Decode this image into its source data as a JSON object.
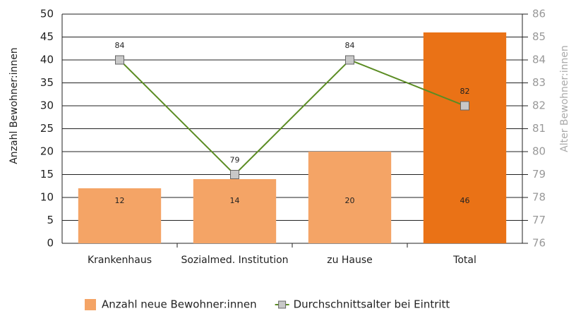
{
  "chart_data": {
    "type": "bar",
    "categories": [
      "Krankenhaus",
      "Sozialmed. Institution",
      "zu Hause",
      "Total"
    ],
    "ylabel": "Anzahl Bewohner:innen",
    "y2label": "Alter Bewohner:innen",
    "ylim": [
      0,
      50
    ],
    "yticks": [
      0,
      5,
      10,
      15,
      20,
      25,
      30,
      35,
      40,
      45,
      50
    ],
    "y2lim": [
      76,
      86
    ],
    "y2ticks": [
      76,
      77,
      78,
      79,
      80,
      81,
      82,
      83,
      84,
      85,
      86
    ],
    "grid": true,
    "legend": "bottom",
    "series": [
      {
        "name": "Anzahl neue Bewohner:innen",
        "type": "bar",
        "color": "#f4a466",
        "colors": [
          "#f4a466",
          "#f4a466",
          "#f4a466",
          "#ea7216"
        ],
        "values": [
          12,
          14,
          20,
          46
        ]
      },
      {
        "name": "Durchschnittsalter bei Eintritt",
        "type": "line",
        "axis": "y2",
        "color": "#5b8c23",
        "marker_color": "#c8c8c8",
        "values": [
          84,
          79,
          84,
          82
        ]
      }
    ]
  }
}
